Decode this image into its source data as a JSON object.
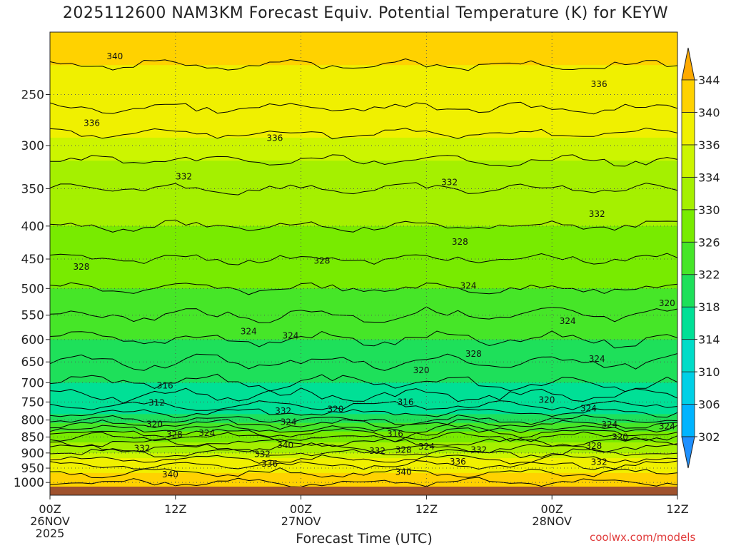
{
  "title": "2025112600 NAM3KM Forecast Equiv. Potential Temperature (K) for KEYW",
  "xlabel": "Forecast Time (UTC)",
  "credit": "coolwx.com/models",
  "colors": {
    "ground": "#a0522d",
    "contour": "#000000",
    "grid": "#555555"
  },
  "chart_data": {
    "type": "heatmap",
    "title": "2025112600 NAM3KM Forecast Equiv. Potential Temperature (K) for KEYW",
    "xlabel": "Forecast Time (UTC)",
    "ylabel": "",
    "xlim": [
      0,
      60
    ],
    "ylim": [
      1015,
      200
    ],
    "y_scale": "log",
    "grid": true,
    "x_ticks": [
      {
        "hour": 0,
        "label": "00Z",
        "date": "26NOV",
        "year": "2025"
      },
      {
        "hour": 12,
        "label": "12Z"
      },
      {
        "hour": 24,
        "label": "00Z",
        "date": "27NOV"
      },
      {
        "hour": 36,
        "label": "12Z"
      },
      {
        "hour": 48,
        "label": "00Z",
        "date": "28NOV"
      },
      {
        "hour": 60,
        "label": "12Z"
      }
    ],
    "y_ticks": [
      250,
      300,
      350,
      400,
      450,
      500,
      550,
      600,
      650,
      700,
      750,
      800,
      850,
      900,
      950,
      1000
    ],
    "colorbar": {
      "levels": [
        302,
        306,
        310,
        314,
        318,
        322,
        326,
        330,
        334,
        336,
        340,
        344
      ],
      "colors": [
        "#1e90ff",
        "#00b4ff",
        "#00d0e6",
        "#00dcc8",
        "#00e096",
        "#1ee05a",
        "#46e628",
        "#78eb00",
        "#a5f000",
        "#ccf500",
        "#f0f000",
        "#ffd200",
        "#ffaa00"
      ],
      "extend": "both"
    },
    "levels_profile": [
      {
        "p": 200,
        "theta_e": 341
      },
      {
        "p": 250,
        "theta_e": 339
      },
      {
        "p": 300,
        "theta_e": 335
      },
      {
        "p": 350,
        "theta_e": 332
      },
      {
        "p": 400,
        "theta_e": 330
      },
      {
        "p": 450,
        "theta_e": 328
      },
      {
        "p": 500,
        "theta_e": 326
      },
      {
        "p": 550,
        "theta_e": 324
      },
      {
        "p": 600,
        "theta_e": 322
      },
      {
        "p": 650,
        "theta_e": 320
      },
      {
        "p": 700,
        "theta_e": 318
      },
      {
        "p": 750,
        "theta_e": 315
      },
      {
        "p": 800,
        "theta_e": 320
      },
      {
        "p": 850,
        "theta_e": 328
      },
      {
        "p": 900,
        "theta_e": 334
      },
      {
        "p": 950,
        "theta_e": 339
      },
      {
        "p": 1000,
        "theta_e": 342
      }
    ],
    "contour_labels": [
      {
        "hour": 6.2,
        "p": 218,
        "text": "340"
      },
      {
        "hour": 4.0,
        "p": 277,
        "text": "336"
      },
      {
        "hour": 21.5,
        "p": 292,
        "text": "336"
      },
      {
        "hour": 52.5,
        "p": 241,
        "text": "336"
      },
      {
        "hour": 12.8,
        "p": 335,
        "text": "332"
      },
      {
        "hour": 38.2,
        "p": 342,
        "text": "332"
      },
      {
        "hour": 52.3,
        "p": 383,
        "text": "332"
      },
      {
        "hour": 3.0,
        "p": 463,
        "text": "328"
      },
      {
        "hour": 26.0,
        "p": 453,
        "text": "328"
      },
      {
        "hour": 39.2,
        "p": 423,
        "text": "328"
      },
      {
        "hour": 40.0,
        "p": 495,
        "text": "324"
      },
      {
        "hour": 19.0,
        "p": 583,
        "text": "324"
      },
      {
        "hour": 23.0,
        "p": 592,
        "text": "324"
      },
      {
        "hour": 49.5,
        "p": 562,
        "text": "324"
      },
      {
        "hour": 59.0,
        "p": 527,
        "text": "320"
      },
      {
        "hour": 40.5,
        "p": 632,
        "text": "328"
      },
      {
        "hour": 52.3,
        "p": 643,
        "text": "324"
      },
      {
        "hour": 35.5,
        "p": 670,
        "text": "320"
      },
      {
        "hour": 11.0,
        "p": 708,
        "text": "316"
      },
      {
        "hour": 10.2,
        "p": 752,
        "text": "312"
      },
      {
        "hour": 34.0,
        "p": 750,
        "text": "316"
      },
      {
        "hour": 47.5,
        "p": 745,
        "text": "320"
      },
      {
        "hour": 51.5,
        "p": 768,
        "text": "324"
      },
      {
        "hour": 27.3,
        "p": 770,
        "text": "320"
      },
      {
        "hour": 22.3,
        "p": 775,
        "text": "332"
      },
      {
        "hour": 10.0,
        "p": 812,
        "text": "320"
      },
      {
        "hour": 11.9,
        "p": 843,
        "text": "328"
      },
      {
        "hour": 15.0,
        "p": 838,
        "text": "324"
      },
      {
        "hour": 22.8,
        "p": 806,
        "text": "324"
      },
      {
        "hour": 53.5,
        "p": 813,
        "text": "324"
      },
      {
        "hour": 59.0,
        "p": 818,
        "text": "324"
      },
      {
        "hour": 33.0,
        "p": 840,
        "text": "316"
      },
      {
        "hour": 54.5,
        "p": 850,
        "text": "320"
      },
      {
        "hour": 8.8,
        "p": 885,
        "text": "332"
      },
      {
        "hour": 22.5,
        "p": 876,
        "text": "340"
      },
      {
        "hour": 20.3,
        "p": 904,
        "text": "332"
      },
      {
        "hour": 31.3,
        "p": 893,
        "text": "332"
      },
      {
        "hour": 33.8,
        "p": 890,
        "text": "328"
      },
      {
        "hour": 36.0,
        "p": 880,
        "text": "324"
      },
      {
        "hour": 41.0,
        "p": 890,
        "text": "332"
      },
      {
        "hour": 52.0,
        "p": 878,
        "text": "328"
      },
      {
        "hour": 52.5,
        "p": 930,
        "text": "332"
      },
      {
        "hour": 21.0,
        "p": 935,
        "text": "336"
      },
      {
        "hour": 39.0,
        "p": 928,
        "text": "336"
      },
      {
        "hour": 11.5,
        "p": 972,
        "text": "340"
      },
      {
        "hour": 33.8,
        "p": 963,
        "text": "340"
      }
    ]
  }
}
